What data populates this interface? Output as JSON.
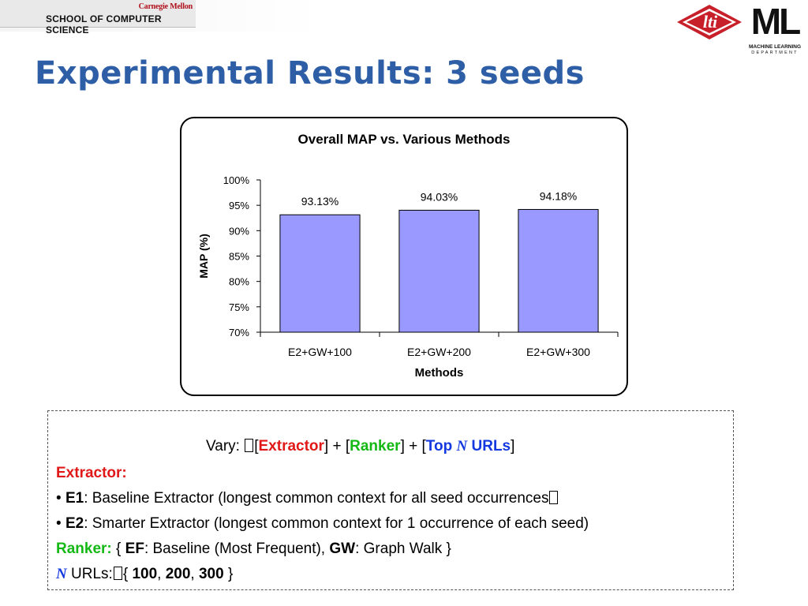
{
  "header": {
    "cmu_name": "Carnegie Mellon",
    "school_name": "SCHOOL OF COMPUTER SCIENCE",
    "lti_logo_text": "lti",
    "ml_logo_text": "ML",
    "ml_logo_sub1": "MACHINE LEARNING",
    "ml_logo_sub2": "DEPARTMENT"
  },
  "slide_title": "Experimental Results: 3 seeds",
  "colors": {
    "title": "#2e5fa6",
    "bar_fill": "#9999ff",
    "extractor": "#e01818",
    "ranker": "#14b814",
    "top_n": "#1438e0",
    "lti_red": "#c8202a"
  },
  "chart_data": {
    "type": "bar",
    "title": "Overall MAP vs. Various Methods",
    "xlabel": "Methods",
    "ylabel": "MAP (%)",
    "categories": [
      "E2+GW+100",
      "E2+GW+200",
      "E2+GW+300"
    ],
    "values": [
      93.13,
      94.03,
      94.18
    ],
    "data_labels": [
      "93.13%",
      "94.03%",
      "94.18%"
    ],
    "ylim": [
      70,
      100
    ],
    "yticks": [
      70,
      75,
      80,
      85,
      90,
      95,
      100
    ],
    "ytick_labels": [
      "70%",
      "75%",
      "80%",
      "85%",
      "90%",
      "95%",
      "100%"
    ],
    "grid": false,
    "legend": "none"
  },
  "info": {
    "vary_prefix": "Vary: ",
    "vary_bracket_open": "[",
    "vary_extractor": "Extractor",
    "vary_mid1": "] + [",
    "vary_ranker": "Ranker",
    "vary_mid2": "] + [",
    "vary_top": "Top",
    "vary_n": "N",
    "vary_urls": "URLs",
    "vary_close": "]",
    "extractor_heading": "Extractor:",
    "e1_bullet": "• ",
    "e1_label": "E1",
    "e1_text": ": Baseline Extractor (longest common context for all seed occurrences",
    "e1_end": "",
    "e2_bullet": "• ",
    "e2_label": "E2",
    "e2_text": ": Smarter Extractor (longest common context for 1 occurrence of each seed)",
    "ranker_heading": "Ranker:",
    "ranker_open": " { ",
    "ef_label": "EF",
    "ef_text": ": Baseline (Most Frequent), ",
    "gw_label": "GW",
    "gw_text": ": Graph Walk }",
    "n_label": "N",
    "urls_text": " URLs:",
    "urls_open": "{ ",
    "url_100": "100",
    "sep1": ", ",
    "url_200": "200",
    "sep2": ", ",
    "url_300": "300",
    "urls_close": " }"
  }
}
